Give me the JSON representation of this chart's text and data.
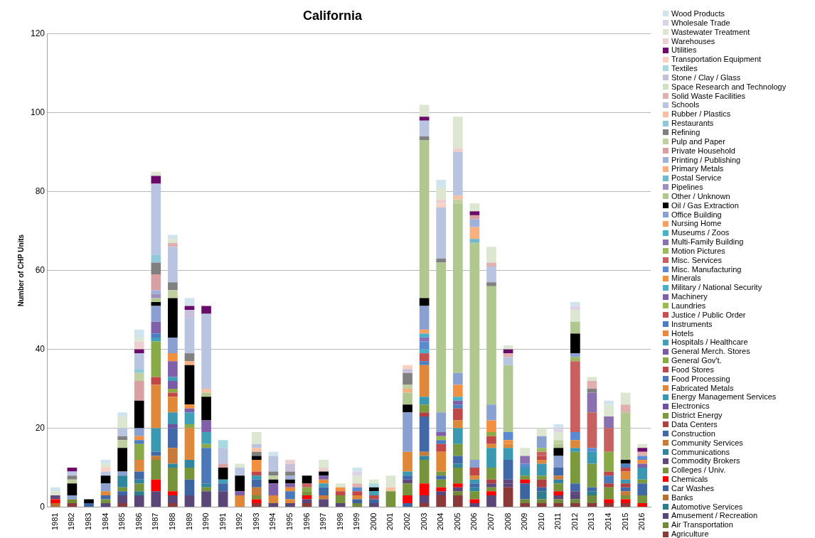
{
  "chart_data": {
    "type": "bar",
    "title": "California",
    "ylabel": "Number of CHP Units",
    "stacked": true,
    "grid": "y",
    "legend": "right",
    "categories": [
      "1981",
      "1982",
      "1983",
      "1984",
      "1985",
      "1986",
      "1987",
      "1988",
      "1989",
      "1990",
      "1991",
      "1992",
      "1993",
      "1994",
      "1995",
      "1996",
      "1997",
      "1998",
      "1999",
      "2000",
      "2001",
      "2002",
      "2003",
      "2004",
      "2005",
      "2006",
      "2007",
      "2008",
      "2009",
      "2010",
      "2011",
      "2012",
      "2013",
      "2014",
      "2015",
      "2016"
    ],
    "ylim": [
      0,
      120
    ],
    "yticks": [
      0,
      20,
      40,
      60,
      80,
      100,
      120
    ],
    "series": [
      {
        "name": "Agriculture",
        "color": "#8b3a3a",
        "values": [
          0,
          1,
          0,
          0,
          1,
          0,
          0,
          1,
          0,
          0,
          0,
          0,
          1,
          0,
          0,
          1,
          0,
          0,
          0,
          0,
          0,
          0,
          1,
          3,
          3,
          0,
          0,
          5,
          1,
          1,
          1,
          1,
          1,
          1,
          1,
          0
        ]
      },
      {
        "name": "Air Transportation",
        "color": "#6f8b3a",
        "values": [
          0,
          1,
          0,
          0,
          0,
          0,
          0,
          0,
          0,
          0,
          0,
          0,
          0,
          0,
          0,
          0,
          0,
          0,
          1,
          0,
          0,
          0,
          0,
          0,
          1,
          0,
          0,
          0,
          1,
          1,
          1,
          1,
          2,
          0,
          0,
          0
        ]
      },
      {
        "name": "Amusement / Recreation",
        "color": "#5b4678",
        "values": [
          0,
          0,
          0,
          1,
          2,
          3,
          4,
          2,
          3,
          4,
          4,
          0,
          0,
          1,
          1,
          1,
          2,
          1,
          0,
          1,
          0,
          0,
          2,
          1,
          1,
          1,
          3,
          1,
          0,
          0,
          1,
          1,
          0,
          0,
          0,
          0
        ]
      },
      {
        "name": "Automotive Services",
        "color": "#2e7d8c",
        "values": [
          0,
          0,
          0,
          0,
          0,
          1,
          0,
          0,
          0,
          0,
          0,
          0,
          0,
          0,
          0,
          0,
          0,
          0,
          0,
          0,
          0,
          0,
          0,
          0,
          0,
          0,
          0,
          0,
          0,
          2,
          0,
          0,
          1,
          0,
          0,
          0
        ]
      },
      {
        "name": "Banks",
        "color": "#b7702e",
        "values": [
          1,
          0,
          0,
          0,
          0,
          0,
          0,
          0,
          0,
          0,
          0,
          0,
          0,
          0,
          0,
          0,
          0,
          0,
          0,
          0,
          0,
          0,
          0,
          0,
          0,
          0,
          0,
          0,
          0,
          0,
          0,
          0,
          0,
          0,
          0,
          0
        ]
      },
      {
        "name": "Car Washes",
        "color": "#3b64a0",
        "values": [
          0,
          0,
          1,
          0,
          1,
          0,
          0,
          0,
          4,
          0,
          0,
          0,
          0,
          0,
          0,
          0,
          0,
          0,
          1,
          1,
          0,
          1,
          0,
          0,
          0,
          0,
          0,
          0,
          4,
          1,
          0,
          0,
          0,
          0,
          0,
          0
        ]
      },
      {
        "name": "Chemicals",
        "color": "#ff0000",
        "values": [
          1,
          0,
          0,
          0,
          0,
          0,
          3,
          1,
          0,
          0,
          0,
          0,
          1,
          0,
          0,
          1,
          0,
          0,
          0,
          0,
          0,
          2,
          3,
          1,
          1,
          1,
          1,
          0,
          1,
          0,
          1,
          0,
          0,
          1,
          1,
          1
        ]
      },
      {
        "name": "Colleges / Univ.",
        "color": "#77933c",
        "values": [
          0,
          0,
          0,
          1,
          1,
          2,
          5,
          6,
          3,
          1,
          0,
          0,
          1,
          0,
          0,
          1,
          0,
          2,
          0,
          0,
          4,
          3,
          6,
          2,
          4,
          2,
          1,
          0,
          1,
          0,
          2,
          0,
          0,
          3,
          1,
          2
        ]
      },
      {
        "name": "Commodity Brokers",
        "color": "#604a7b",
        "values": [
          1,
          0,
          0,
          0,
          0,
          0,
          0,
          0,
          0,
          0,
          0,
          0,
          0,
          0,
          0,
          0,
          0,
          0,
          0,
          0,
          0,
          1,
          0,
          0,
          0,
          0,
          1,
          1,
          0,
          0,
          0,
          1,
          0,
          0,
          0,
          0
        ]
      },
      {
        "name": "Communications",
        "color": "#31859c",
        "values": [
          0,
          0,
          0,
          0,
          3,
          1,
          0,
          1,
          2,
          1,
          0,
          0,
          0,
          0,
          0,
          0,
          0,
          0,
          0,
          0,
          0,
          0,
          1,
          0,
          1,
          1,
          0,
          0,
          0,
          0,
          1,
          0,
          0,
          0,
          0,
          0
        ]
      },
      {
        "name": "Community Services",
        "color": "#c87a3a",
        "values": [
          0,
          0,
          0,
          0,
          0,
          0,
          1,
          4,
          0,
          0,
          0,
          0,
          2,
          0,
          0,
          0,
          1,
          0,
          0,
          0,
          0,
          0,
          1,
          0,
          0,
          0,
          0,
          0,
          0,
          0,
          1,
          0,
          0,
          0,
          1,
          0
        ]
      },
      {
        "name": "Construction",
        "color": "#4169a8",
        "values": [
          0,
          0,
          0,
          1,
          0,
          2,
          1,
          5,
          0,
          0,
          2,
          0,
          2,
          0,
          0,
          0,
          2,
          0,
          0,
          0,
          0,
          1,
          9,
          1,
          2,
          1,
          0,
          5,
          0,
          0,
          2,
          2,
          1,
          0,
          1,
          3
        ]
      },
      {
        "name": "Data Centers",
        "color": "#b04040",
        "values": [
          0,
          0,
          0,
          0,
          0,
          0,
          0,
          0,
          0,
          0,
          0,
          0,
          0,
          0,
          0,
          0,
          0,
          0,
          0,
          0,
          0,
          0,
          1,
          0,
          0,
          0,
          1,
          0,
          0,
          2,
          0,
          0,
          0,
          1,
          1,
          0
        ]
      },
      {
        "name": "District Energy",
        "color": "#7a9a40",
        "values": [
          0,
          0,
          0,
          0,
          0,
          0,
          0,
          0,
          0,
          0,
          0,
          0,
          0,
          0,
          0,
          0,
          0,
          0,
          0,
          0,
          0,
          0,
          2,
          1,
          3,
          0,
          3,
          0,
          0,
          1,
          0,
          8,
          6,
          0,
          0,
          1
        ]
      },
      {
        "name": "Electronics",
        "color": "#7050a0",
        "values": [
          0,
          0,
          0,
          0,
          0,
          0,
          0,
          1,
          0,
          0,
          0,
          0,
          0,
          0,
          0,
          0,
          0,
          0,
          0,
          0,
          0,
          0,
          0,
          0,
          0,
          0,
          0,
          0,
          0,
          0,
          0,
          0,
          0,
          0,
          0,
          0
        ]
      },
      {
        "name": "Energy Management Services",
        "color": "#3a98b0",
        "values": [
          0,
          0,
          0,
          0,
          0,
          0,
          6,
          3,
          0,
          0,
          0,
          0,
          1,
          0,
          0,
          0,
          0,
          0,
          0,
          0,
          0,
          1,
          2,
          0,
          4,
          1,
          5,
          3,
          2,
          3,
          0,
          1,
          3,
          0,
          1,
          3
        ]
      },
      {
        "name": "Fabricated Metals",
        "color": "#e0883a",
        "values": [
          0,
          0,
          0,
          1,
          0,
          3,
          11,
          4,
          8,
          0,
          0,
          3,
          0,
          2,
          1,
          0,
          0,
          0,
          1,
          0,
          0,
          5,
          8,
          5,
          2,
          1,
          1,
          1,
          0,
          1,
          0,
          2,
          0,
          0,
          2,
          0
        ]
      },
      {
        "name": "Food Processing",
        "color": "#4a78b8",
        "values": [
          0,
          0,
          0,
          0,
          0,
          0,
          0,
          0,
          0,
          9,
          0,
          0,
          0,
          0,
          2,
          0,
          0,
          0,
          0,
          0,
          0,
          0,
          0,
          0,
          0,
          0,
          0,
          0,
          0,
          0,
          0,
          0,
          0,
          2,
          0,
          0
        ]
      },
      {
        "name": "Food Stores",
        "color": "#c04848",
        "values": [
          0,
          0,
          0,
          0,
          0,
          0,
          2,
          1,
          0,
          0,
          0,
          0,
          1,
          0,
          0,
          0,
          0,
          1,
          1,
          1,
          0,
          0,
          0,
          2,
          3,
          2,
          2,
          0,
          0,
          1,
          0,
          0,
          0,
          1,
          1,
          0
        ]
      },
      {
        "name": "General Gov't.",
        "color": "#8aaa48",
        "values": [
          0,
          0,
          0,
          0,
          0,
          4,
          9,
          1,
          1,
          1,
          0,
          0,
          0,
          0,
          0,
          1,
          0,
          0,
          0,
          0,
          0,
          0,
          0,
          0,
          0,
          0,
          1,
          0,
          0,
          0,
          0,
          0,
          0,
          5,
          0,
          0
        ]
      },
      {
        "name": "General Merch. Stores",
        "color": "#7a5aa8",
        "values": [
          0,
          0,
          0,
          0,
          0,
          0,
          0,
          2,
          0,
          0,
          0,
          0,
          0,
          0,
          0,
          0,
          0,
          0,
          0,
          0,
          0,
          0,
          0,
          0,
          0,
          0,
          0,
          0,
          0,
          0,
          0,
          0,
          0,
          0,
          0,
          0
        ]
      },
      {
        "name": "Hospitals / Healthcare",
        "color": "#40a0b8",
        "values": [
          0,
          0,
          0,
          0,
          0,
          0,
          1,
          1,
          3,
          3,
          1,
          0,
          0,
          0,
          0,
          0,
          1,
          0,
          0,
          1,
          0,
          0,
          0,
          0,
          0,
          0,
          0,
          0,
          0,
          0,
          0,
          0,
          0,
          0,
          0,
          0
        ]
      },
      {
        "name": "Hotels",
        "color": "#e8883a",
        "values": [
          0,
          0,
          0,
          0,
          0,
          0,
          0,
          0,
          0,
          0,
          0,
          0,
          0,
          0,
          1,
          0,
          1,
          0,
          0,
          0,
          0,
          0,
          0,
          0,
          0,
          0,
          0,
          0,
          0,
          0,
          0,
          0,
          0,
          0,
          0,
          0
        ]
      },
      {
        "name": "Instruments",
        "color": "#4a7ec0",
        "values": [
          0,
          0,
          0,
          0,
          0,
          1,
          1,
          0,
          0,
          0,
          0,
          0,
          0,
          0,
          0,
          0,
          0,
          0,
          0,
          0,
          0,
          0,
          1,
          1,
          1,
          0,
          0,
          0,
          0,
          0,
          0,
          0,
          0,
          0,
          1,
          0
        ]
      },
      {
        "name": "Justice / Public Order",
        "color": "#c85050",
        "values": [
          0,
          0,
          0,
          0,
          0,
          0,
          0,
          0,
          0,
          0,
          0,
          0,
          0,
          0,
          0,
          0,
          0,
          0,
          0,
          0,
          0,
          0,
          2,
          0,
          0,
          0,
          0,
          0,
          0,
          0,
          0,
          0,
          0,
          0,
          0,
          0
        ]
      },
      {
        "name": "Laundries",
        "color": "#9aba50",
        "values": [
          0,
          0,
          0,
          0,
          0,
          0,
          0,
          0,
          0,
          0,
          0,
          0,
          0,
          0,
          0,
          0,
          0,
          0,
          0,
          0,
          0,
          0,
          0,
          1,
          0,
          0,
          0,
          0,
          0,
          0,
          0,
          0,
          0,
          0,
          0,
          0
        ]
      },
      {
        "name": "Machinery",
        "color": "#8060a8",
        "values": [
          0,
          0,
          0,
          0,
          0,
          0,
          3,
          4,
          1,
          3,
          0,
          1,
          0,
          3,
          1,
          0,
          1,
          0,
          0,
          0,
          0,
          0,
          0,
          1,
          1,
          0,
          0,
          0,
          0,
          0,
          0,
          0,
          0,
          0,
          0,
          1
        ]
      },
      {
        "name": "Military / National Security",
        "color": "#48b0c8",
        "values": [
          0,
          0,
          0,
          0,
          0,
          0,
          0,
          0,
          0,
          0,
          0,
          0,
          0,
          0,
          0,
          0,
          0,
          0,
          0,
          0,
          0,
          0,
          1,
          0,
          1,
          0,
          0,
          0,
          0,
          0,
          0,
          0,
          0,
          0,
          0,
          0
        ]
      },
      {
        "name": "Minerals",
        "color": "#f09040",
        "values": [
          0,
          0,
          0,
          0,
          0,
          1,
          0,
          2,
          1,
          0,
          0,
          0,
          3,
          0,
          0,
          0,
          0,
          1,
          0,
          0,
          0,
          0,
          0,
          0,
          3,
          0,
          3,
          1,
          0,
          0,
          0,
          0,
          0,
          0,
          0,
          1
        ]
      },
      {
        "name": "Misc. Manufacturing",
        "color": "#5a8ad0",
        "values": [
          0,
          0,
          0,
          0,
          0,
          0,
          0,
          0,
          0,
          0,
          0,
          0,
          0,
          0,
          0,
          0,
          0,
          0,
          1,
          0,
          0,
          0,
          2,
          0,
          0,
          0,
          0,
          2,
          1,
          0,
          0,
          2,
          1,
          0,
          0,
          1
        ]
      },
      {
        "name": "Misc. Services",
        "color": "#c86060",
        "values": [
          0,
          0,
          0,
          0,
          0,
          0,
          0,
          0,
          0,
          0,
          0,
          0,
          0,
          0,
          0,
          1,
          0,
          0,
          0,
          0,
          0,
          0,
          0,
          0,
          0,
          0,
          0,
          0,
          0,
          1,
          0,
          18,
          9,
          6,
          0,
          0
        ]
      },
      {
        "name": "Motion Pictures",
        "color": "#9aba60",
        "values": [
          0,
          0,
          0,
          0,
          0,
          0,
          0,
          0,
          0,
          0,
          0,
          0,
          0,
          0,
          0,
          0,
          0,
          0,
          0,
          0,
          0,
          0,
          0,
          0,
          0,
          0,
          0,
          0,
          0,
          1,
          0,
          1,
          0,
          0,
          0,
          0
        ]
      },
      {
        "name": "Multi-Family Building",
        "color": "#8a70b0",
        "values": [
          0,
          0,
          0,
          0,
          0,
          0,
          0,
          0,
          0,
          0,
          0,
          0,
          0,
          0,
          0,
          0,
          0,
          0,
          0,
          0,
          0,
          0,
          1,
          0,
          0,
          0,
          0,
          0,
          2,
          0,
          0,
          0,
          5,
          3,
          0,
          0
        ]
      },
      {
        "name": "Museums / Zoos",
        "color": "#4ab0cc",
        "values": [
          0,
          0,
          0,
          0,
          0,
          0,
          0,
          0,
          0,
          0,
          0,
          0,
          0,
          0,
          0,
          0,
          0,
          0,
          0,
          0,
          0,
          0,
          1,
          0,
          0,
          0,
          0,
          0,
          0,
          0,
          0,
          0,
          0,
          0,
          0,
          0
        ]
      },
      {
        "name": "Nursing Home",
        "color": "#f8a060",
        "values": [
          0,
          0,
          0,
          0,
          0,
          0,
          0,
          0,
          0,
          0,
          0,
          0,
          0,
          0,
          0,
          0,
          0,
          0,
          0,
          0,
          0,
          0,
          1,
          0,
          0,
          0,
          0,
          0,
          0,
          0,
          0,
          0,
          0,
          0,
          0,
          0
        ]
      },
      {
        "name": "Office Building",
        "color": "#8aa0d0",
        "values": [
          0,
          1,
          0,
          2,
          1,
          2,
          4,
          4,
          0,
          0,
          0,
          0,
          0,
          0,
          0,
          0,
          0,
          0,
          0,
          0,
          0,
          10,
          6,
          5,
          3,
          2,
          4,
          0,
          0,
          3,
          3,
          1,
          0,
          0,
          0,
          0
        ]
      },
      {
        "name": "Oil / Gas Extraction",
        "color": "#000000",
        "values": [
          0,
          3,
          1,
          2,
          6,
          7,
          1,
          10,
          10,
          6,
          3,
          4,
          1,
          1,
          1,
          2,
          1,
          0,
          0,
          1,
          0,
          2,
          2,
          0,
          0,
          0,
          0,
          0,
          0,
          0,
          2,
          5,
          0,
          0,
          1,
          0
        ]
      },
      {
        "name": "Other / Unknown",
        "color": "#b0c890",
        "values": [
          0,
          0,
          0,
          0,
          0,
          0,
          1,
          0,
          0,
          1,
          0,
          0,
          0,
          0,
          0,
          0,
          0,
          0,
          0,
          0,
          0,
          3,
          40,
          38,
          43,
          55,
          30,
          17,
          0,
          0,
          1,
          3,
          0,
          0,
          12,
          0
        ]
      },
      {
        "name": "Pipelines",
        "color": "#a090c0",
        "values": [
          0,
          0,
          0,
          0,
          0,
          0,
          1,
          0,
          0,
          0,
          0,
          0,
          0,
          0,
          0,
          0,
          0,
          0,
          0,
          0,
          0,
          0,
          0,
          0,
          0,
          0,
          0,
          0,
          0,
          0,
          0,
          0,
          0,
          0,
          0,
          0
        ]
      },
      {
        "name": "Postal Service",
        "color": "#70b8cc",
        "values": [
          0,
          0,
          0,
          0,
          0,
          0,
          0,
          0,
          0,
          0,
          0,
          0,
          0,
          0,
          0,
          0,
          0,
          0,
          0,
          0,
          0,
          0,
          0,
          0,
          0,
          1,
          0,
          0,
          0,
          0,
          0,
          0,
          0,
          0,
          0,
          0
        ]
      },
      {
        "name": "Primary Metals",
        "color": "#f8b080",
        "values": [
          0,
          0,
          0,
          0,
          0,
          0,
          0,
          0,
          1,
          0,
          0,
          0,
          0,
          0,
          0,
          0,
          0,
          0,
          0,
          0,
          0,
          1,
          0,
          0,
          0,
          3,
          0,
          0,
          0,
          0,
          0,
          0,
          0,
          0,
          0,
          0
        ]
      },
      {
        "name": "Printing / Publishing",
        "color": "#a0b0d8",
        "values": [
          0,
          0,
          0,
          0,
          0,
          0,
          1,
          0,
          0,
          0,
          0,
          0,
          0,
          0,
          1,
          0,
          0,
          0,
          0,
          0,
          0,
          0,
          0,
          0,
          0,
          2,
          0,
          0,
          0,
          0,
          0,
          0,
          0,
          0,
          0,
          0
        ]
      },
      {
        "name": "Private Household",
        "color": "#d8a0a0",
        "values": [
          0,
          0,
          0,
          0,
          0,
          5,
          4,
          0,
          0,
          0,
          1,
          0,
          0,
          0,
          0,
          0,
          0,
          0,
          0,
          0,
          0,
          0,
          0,
          0,
          0,
          1,
          0,
          0,
          0,
          0,
          0,
          0,
          0,
          0,
          0,
          0
        ]
      },
      {
        "name": "Pulp and Paper",
        "color": "#c0d0a0",
        "values": [
          0,
          1,
          0,
          0,
          2,
          2,
          0,
          2,
          0,
          0,
          0,
          0,
          0,
          1,
          0,
          0,
          0,
          0,
          0,
          0,
          0,
          1,
          0,
          0,
          1,
          0,
          0,
          0,
          0,
          0,
          1,
          0,
          0,
          0,
          0,
          0
        ]
      },
      {
        "name": "Refining",
        "color": "#808080",
        "values": [
          0,
          1,
          0,
          0,
          1,
          0,
          3,
          2,
          2,
          0,
          0,
          0,
          1,
          1,
          1,
          0,
          0,
          0,
          0,
          0,
          0,
          3,
          1,
          1,
          0,
          0,
          1,
          0,
          0,
          0,
          0,
          0,
          1,
          0,
          0,
          0
        ]
      },
      {
        "name": "Restaurants",
        "color": "#90c8d8",
        "values": [
          0,
          0,
          0,
          0,
          0,
          1,
          2,
          0,
          0,
          0,
          0,
          0,
          0,
          0,
          0,
          0,
          0,
          0,
          0,
          0,
          0,
          0,
          0,
          0,
          0,
          0,
          0,
          0,
          0,
          0,
          0,
          0,
          0,
          0,
          0,
          0
        ]
      },
      {
        "name": "Rubber / Plastics",
        "color": "#f8c0a0",
        "values": [
          0,
          0,
          0,
          0,
          0,
          0,
          0,
          0,
          0,
          1,
          0,
          0,
          1,
          0,
          0,
          0,
          0,
          0,
          0,
          0,
          1,
          0,
          0,
          0,
          1,
          0,
          0,
          0,
          0,
          0,
          0,
          0,
          0,
          0,
          0,
          0
        ]
      },
      {
        "name": "Schools",
        "color": "#b8c4e0",
        "values": [
          0,
          1,
          0,
          1,
          2,
          4,
          18,
          9,
          9,
          19,
          4,
          2,
          1,
          4,
          0,
          0,
          0,
          0,
          0,
          0,
          0,
          0,
          4,
          13,
          11,
          0,
          4,
          2,
          0,
          0,
          0,
          0,
          0,
          0,
          0,
          0
        ]
      },
      {
        "name": "Solid Waste Facilities",
        "color": "#e0b0b0",
        "values": [
          0,
          0,
          0,
          0,
          0,
          0,
          0,
          1,
          0,
          0,
          0,
          0,
          0,
          0,
          0,
          0,
          0,
          0,
          1,
          0,
          0,
          0,
          0,
          0,
          0,
          0,
          1,
          1,
          0,
          0,
          0,
          0,
          2,
          0,
          2,
          1
        ]
      },
      {
        "name": "Space Research and Technology",
        "color": "#d0e0c0",
        "values": [
          0,
          0,
          0,
          0,
          0,
          0,
          0,
          0,
          0,
          0,
          0,
          0,
          0,
          0,
          0,
          0,
          0,
          0,
          0,
          0,
          0,
          0,
          0,
          0,
          0,
          0,
          0,
          0,
          0,
          0,
          0,
          0,
          0,
          0,
          0,
          0
        ]
      },
      {
        "name": "Stone / Clay / Glass",
        "color": "#c8c0d8",
        "values": [
          0,
          0,
          0,
          0,
          0,
          0,
          0,
          0,
          2,
          0,
          0,
          0,
          0,
          0,
          2,
          0,
          0,
          0,
          0,
          0,
          0,
          1,
          0,
          0,
          0,
          0,
          0,
          0,
          0,
          0,
          0,
          0,
          0,
          0,
          0,
          0
        ]
      },
      {
        "name": "Textiles",
        "color": "#a8d8e0",
        "values": [
          0,
          0,
          0,
          0,
          0,
          0,
          0,
          0,
          0,
          0,
          2,
          0,
          0,
          0,
          0,
          0,
          0,
          0,
          0,
          1,
          0,
          0,
          0,
          0,
          0,
          0,
          0,
          0,
          0,
          0,
          0,
          0,
          0,
          0,
          0,
          0
        ]
      },
      {
        "name": "Transportation Equipment",
        "color": "#fcd0c0",
        "values": [
          0,
          0,
          0,
          1,
          0,
          0,
          0,
          0,
          0,
          0,
          0,
          0,
          0,
          0,
          0,
          0,
          0,
          0,
          0,
          0,
          0,
          1,
          0,
          1,
          0,
          0,
          0,
          0,
          0,
          0,
          0,
          0,
          0,
          0,
          0,
          0
        ]
      },
      {
        "name": "Utilities",
        "color": "#6a0a6a",
        "values": [
          0,
          1,
          0,
          0,
          0,
          1,
          2,
          0,
          1,
          2,
          0,
          0,
          0,
          0,
          0,
          0,
          0,
          0,
          0,
          0,
          0,
          0,
          1,
          0,
          0,
          1,
          0,
          1,
          0,
          0,
          0,
          0,
          0,
          0,
          0,
          1
        ]
      },
      {
        "name": "Warehouses",
        "color": "#ecd0d0",
        "values": [
          0,
          0,
          0,
          0,
          0,
          2,
          0,
          0,
          0,
          0,
          0,
          0,
          0,
          0,
          1,
          0,
          1,
          0,
          0,
          0,
          0,
          0,
          0,
          1,
          1,
          0,
          0,
          0,
          0,
          0,
          0,
          0,
          0,
          0,
          0,
          0
        ]
      },
      {
        "name": "Wastewater Treatment",
        "color": "#dce6d0",
        "values": [
          1,
          0,
          0,
          1,
          3,
          1,
          1,
          1,
          0,
          0,
          0,
          1,
          3,
          0,
          0,
          0,
          2,
          1,
          2,
          1,
          3,
          0,
          3,
          3,
          8,
          2,
          4,
          1,
          2,
          2,
          2,
          3,
          1,
          3,
          3,
          1
        ]
      },
      {
        "name": "Wholesale Trade",
        "color": "#dcd4e4",
        "values": [
          0,
          0,
          0,
          0,
          0,
          0,
          0,
          0,
          0,
          0,
          0,
          0,
          0,
          0,
          0,
          0,
          0,
          0,
          1,
          0,
          0,
          0,
          0,
          0,
          0,
          0,
          0,
          0,
          0,
          0,
          1,
          1,
          0,
          0,
          0,
          0
        ]
      },
      {
        "name": "Wood Products",
        "color": "#d0e4ee",
        "values": [
          1,
          0,
          0,
          1,
          1,
          2,
          0,
          1,
          2,
          0,
          0,
          0,
          0,
          1,
          0,
          0,
          0,
          0,
          1,
          0,
          0,
          0,
          0,
          2,
          0,
          0,
          0,
          0,
          0,
          0,
          1,
          1,
          0,
          1,
          0,
          0
        ]
      }
    ]
  }
}
